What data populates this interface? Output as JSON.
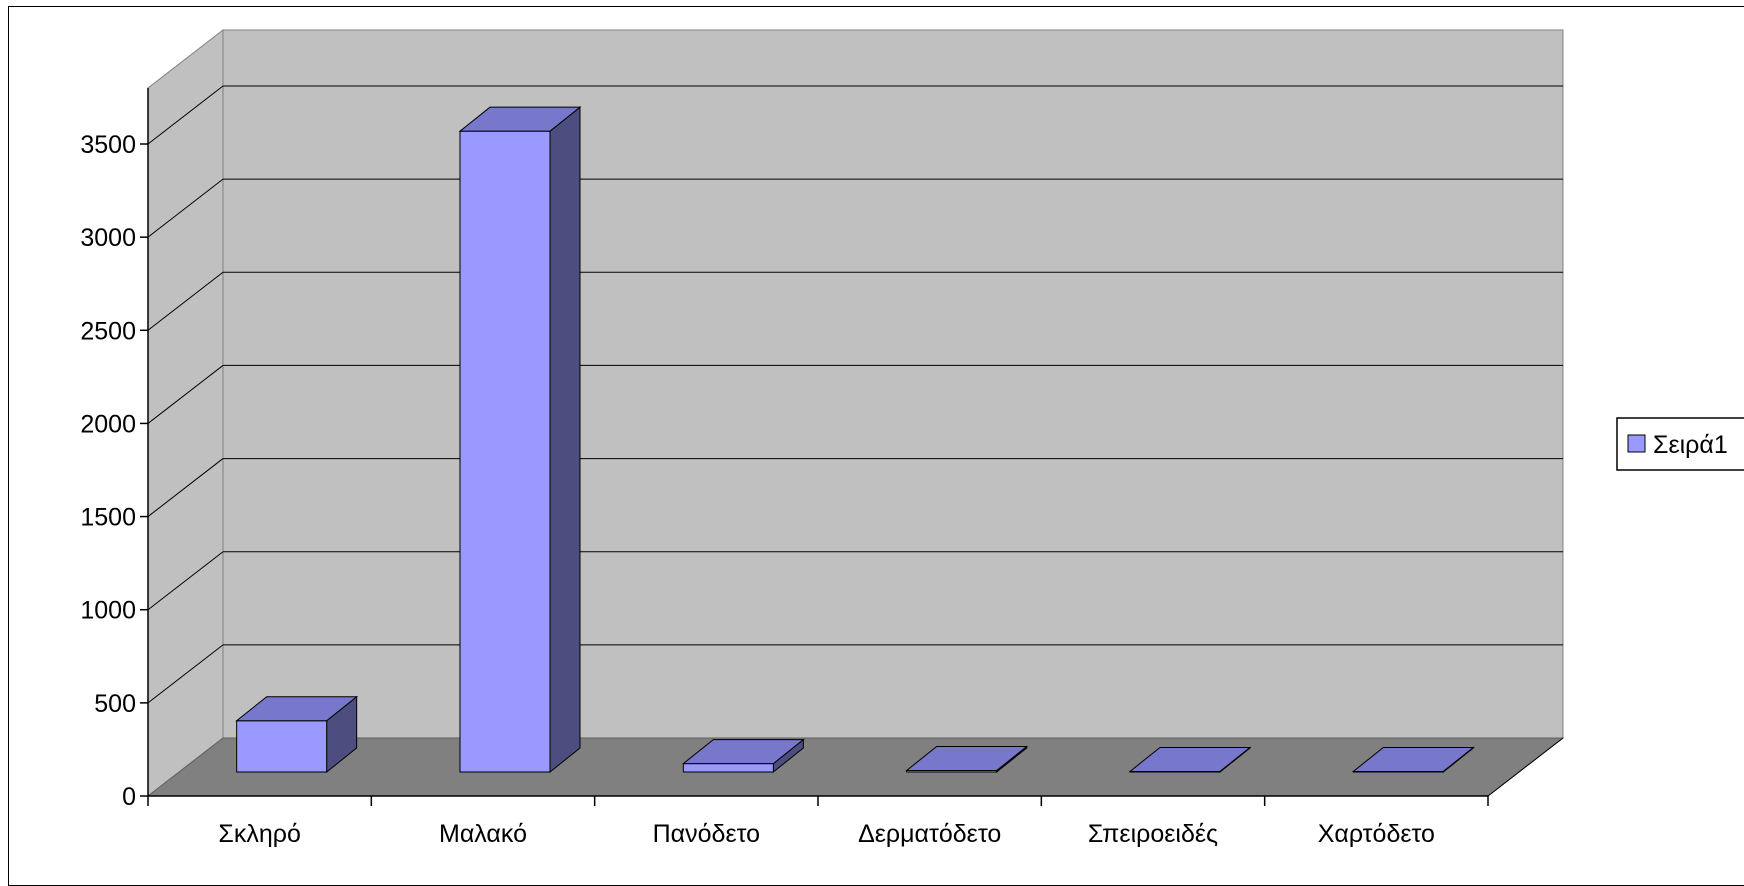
{
  "chart_data": {
    "type": "bar",
    "categories": [
      "Σκληρό",
      "Μαλακό",
      "Πανόδετο",
      "Δερματόδετο",
      "Σπειροειδές",
      "Χαρτόδετο"
    ],
    "series": [
      {
        "name": "Σειρά1",
        "values": [
          275,
          3440,
          45,
          8,
          3,
          3
        ]
      }
    ],
    "ylim": [
      0,
      3500
    ],
    "yticks": [
      0,
      500,
      1000,
      1500,
      2000,
      2500,
      3000,
      3500
    ],
    "grid": true,
    "three_d": true,
    "legend_position": "right",
    "colors": {
      "bar_front": "#9999ff",
      "bar_top": "#7777cc",
      "bar_side": "#4d4d80",
      "back_wall": "#c0c0c0",
      "side_wall": "#c0c0c0",
      "floor": "#808080",
      "gridline": "#000000"
    }
  }
}
